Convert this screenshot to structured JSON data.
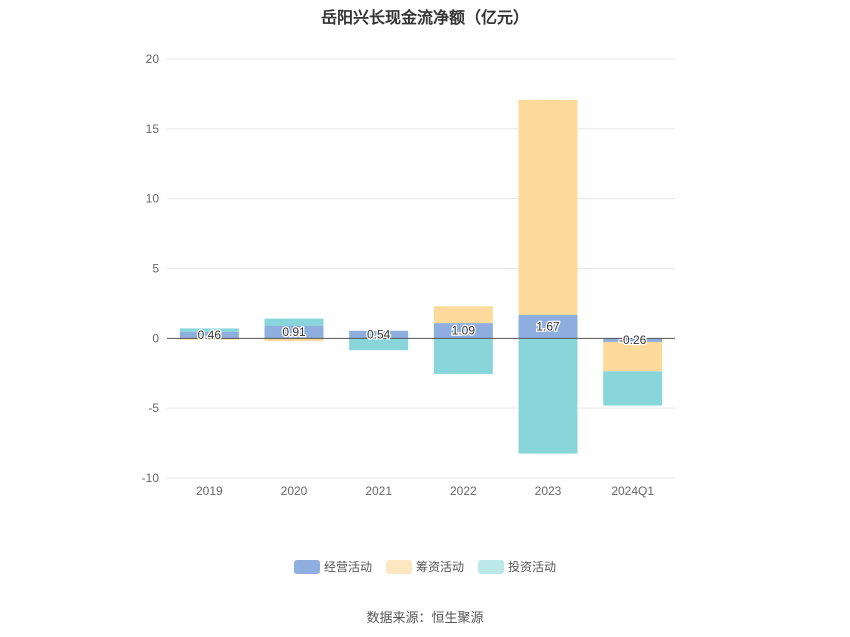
{
  "title": "岳阳兴长现金流净额（亿元）",
  "source": "数据来源：恒生聚源",
  "colors": {
    "operating": "#8eaedf",
    "financing": "#fdd99b",
    "investing": "#88d6da",
    "grid": "#e6e6e6",
    "axis": "#555555"
  },
  "chart_data": {
    "type": "bar",
    "stacked": true,
    "title": "岳阳兴长现金流净额（亿元）",
    "categories": [
      "2019",
      "2020",
      "2021",
      "2022",
      "2023",
      "2024Q1"
    ],
    "ylim": [
      -10,
      20
    ],
    "yticks": [
      20,
      15,
      10,
      5,
      0,
      -5,
      -10
    ],
    "grid": true,
    "legend_position": "bottom",
    "series": [
      {
        "name": "经营活动",
        "values": [
          0.46,
          0.91,
          0.54,
          1.09,
          1.67,
          -0.26
        ]
      },
      {
        "name": "筹资活动",
        "values": [
          -0.1,
          -0.2,
          0.0,
          1.2,
          15.4,
          -2.1
        ]
      },
      {
        "name": "投资活动",
        "values": [
          0.25,
          0.5,
          -0.85,
          -2.55,
          -8.25,
          -2.45
        ]
      }
    ],
    "data_labels": [
      "0.46",
      "0.91",
      "0.54",
      "1.09",
      "1.67",
      "-0.26"
    ]
  }
}
